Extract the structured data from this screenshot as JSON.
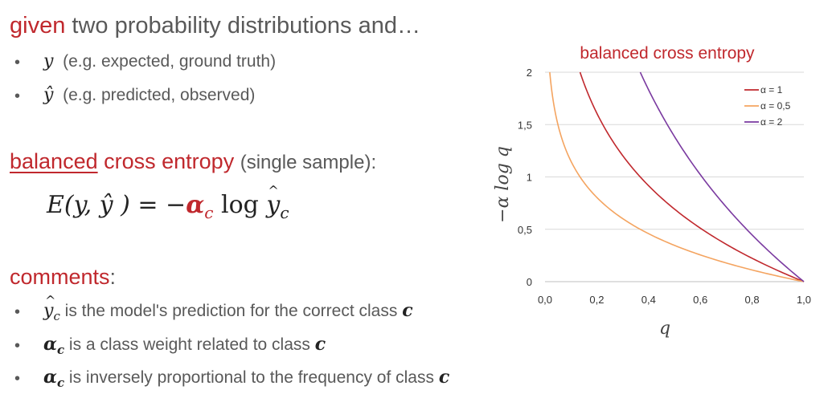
{
  "intro": {
    "given_word": "given",
    "rest": "two probability distributions and…"
  },
  "bullets": [
    {
      "sym": "y",
      "text": "(e.g. expected, ground truth)"
    },
    {
      "sym": "ŷ",
      "text": "(e.g. predicted, observed)"
    }
  ],
  "heading": {
    "balanced": "balanced",
    "cross_entropy": "cross entropy",
    "suffix": "(single sample):"
  },
  "formula": {
    "lhs": "E(y, ŷ ) = −",
    "alpha": "α",
    "alpha_sub": "c",
    "log": " log ",
    "y": "y",
    "y_sub": "c"
  },
  "comments": {
    "title": "comments",
    "colon": ":",
    "items": [
      {
        "sym": "y",
        "sub": "c",
        "text": " is the model's prediction for the correct class ",
        "tail": "c"
      },
      {
        "sym": "α",
        "sub": "c",
        "text": " is a class weight related to class ",
        "tail": "c"
      },
      {
        "sym": "α",
        "sub": "c",
        "text": " is inversely proportional to the frequency of class ",
        "tail": "c"
      }
    ]
  },
  "chart_data": {
    "type": "line",
    "title": "balanced cross entropy",
    "xlabel": "q",
    "ylabel": "−α log q",
    "xlim": [
      0,
      1
    ],
    "ylim": [
      0,
      2
    ],
    "x_ticks": [
      "0,0",
      "0,2",
      "0,4",
      "0,6",
      "0,8",
      "1,0"
    ],
    "y_ticks": [
      "0",
      "0,5",
      "1",
      "1,5",
      "2"
    ],
    "legend_position": "top-right",
    "grid": "horizontal",
    "series": [
      {
        "name": "α = 1",
        "alpha": 1,
        "color": "#c0282d",
        "x": [
          0.135,
          0.2,
          0.3,
          0.4,
          0.5,
          0.6,
          0.7,
          0.8,
          0.9,
          1.0
        ],
        "y": [
          2.0,
          1.61,
          1.2,
          0.92,
          0.69,
          0.51,
          0.36,
          0.22,
          0.11,
          0.0
        ]
      },
      {
        "name": "α = 0,5",
        "alpha": 0.5,
        "color": "#f4a460",
        "x": [
          0.14,
          0.2,
          0.3,
          0.4,
          0.5,
          0.6,
          0.7,
          0.8,
          0.9,
          1.0
        ],
        "y": [
          0.98,
          0.8,
          0.6,
          0.46,
          0.35,
          0.26,
          0.18,
          0.11,
          0.05,
          0.0
        ]
      },
      {
        "name": "α = 2",
        "alpha": 2,
        "color": "#7a3aa0",
        "x": [
          0.368,
          0.4,
          0.5,
          0.6,
          0.7,
          0.8,
          0.9,
          1.0
        ],
        "y": [
          2.0,
          1.83,
          1.39,
          1.02,
          0.71,
          0.45,
          0.21,
          0.0
        ]
      }
    ]
  }
}
